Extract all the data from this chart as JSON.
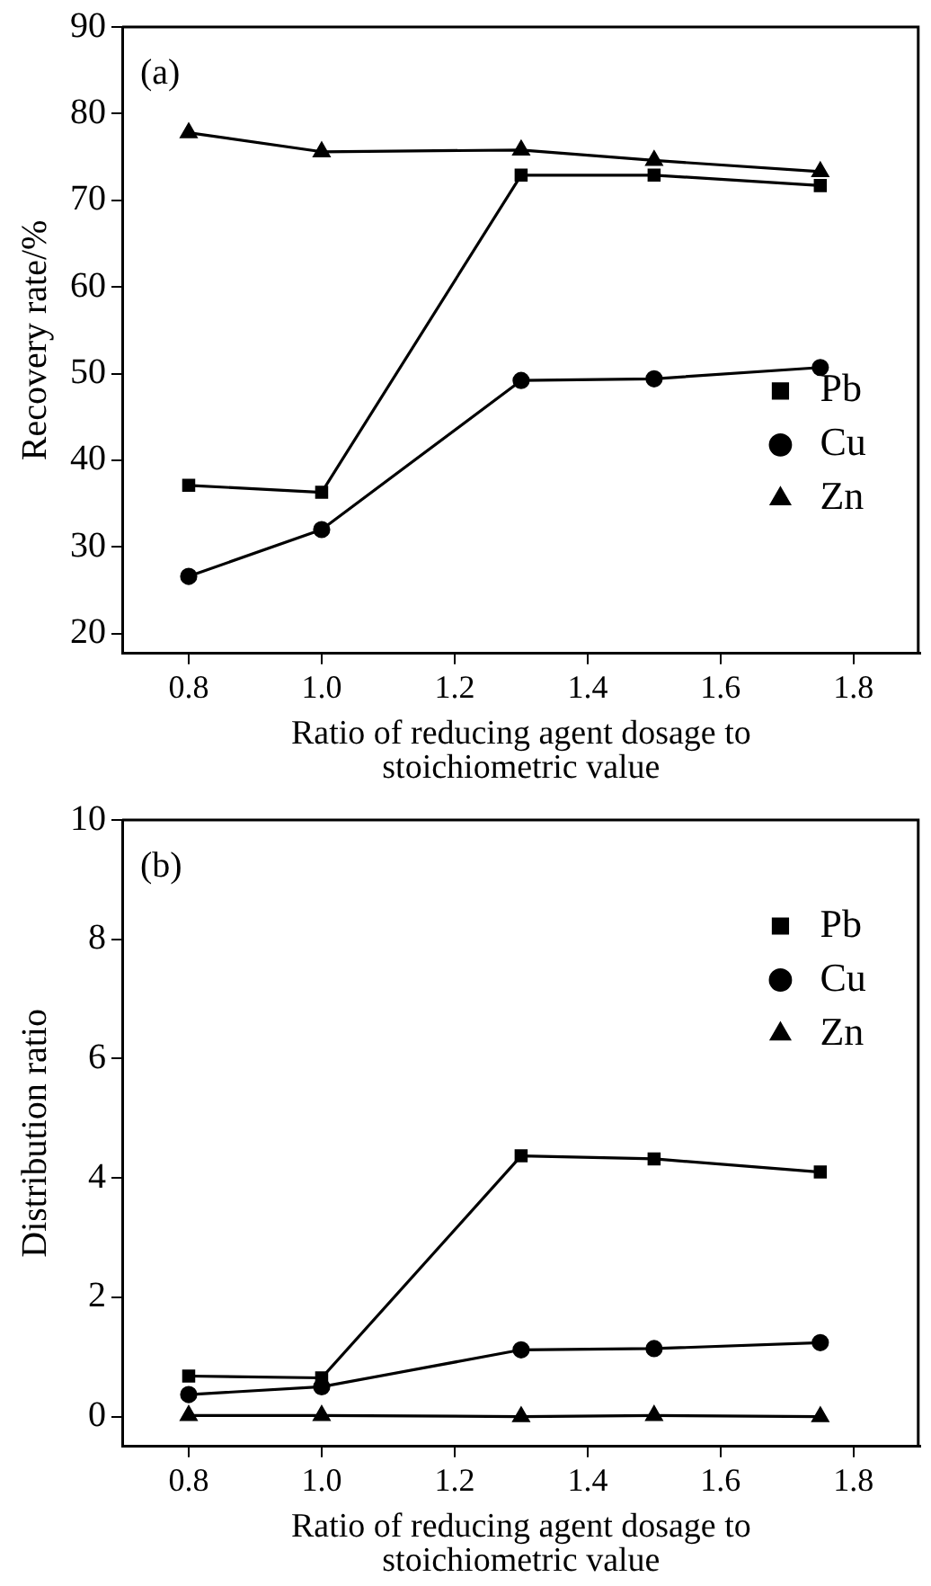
{
  "chart_data": [
    {
      "type": "line",
      "xlabel": "Ratio of reducing agent dosage to stoichiometric value",
      "ylabel": "Recovery rate/%",
      "annotations": [
        "(a)"
      ],
      "x": [
        0.8,
        1.0,
        1.3,
        1.5,
        1.75
      ],
      "series": [
        {
          "name": "Pb",
          "color": "#000000",
          "marker": "square",
          "values": [
            37.1,
            36.3,
            72.9,
            72.9,
            71.7
          ]
        },
        {
          "name": "Cu",
          "color": "#000000",
          "marker": "circle",
          "values": [
            26.6,
            32.0,
            49.2,
            49.4,
            50.7
          ]
        },
        {
          "name": "Zn",
          "color": "#000000",
          "marker": "triangle",
          "values": [
            77.8,
            75.6,
            75.8,
            74.6,
            73.3
          ]
        }
      ],
      "xlim": [
        0.7,
        1.9
      ],
      "xticks": [
        {
          "value": 0.8,
          "label": "0.8"
        },
        {
          "value": 1.0,
          "label": "1.0"
        },
        {
          "value": 1.2,
          "label": "1.2"
        },
        {
          "value": 1.4,
          "label": "1.4"
        },
        {
          "value": 1.6,
          "label": "1.6"
        },
        {
          "value": 1.8,
          "label": "1.8"
        }
      ],
      "ylim": [
        17.7,
        90
      ],
      "yticks": [
        20,
        30,
        40,
        50,
        60,
        70,
        80,
        90
      ],
      "grid": false,
      "legend": "bottom right",
      "line_style": "solid"
    },
    {
      "type": "line",
      "xlabel": "Ratio of reducing agent dosage to stoichiometric value",
      "ylabel": "Distribution ratio",
      "annotations": [
        "(b)"
      ],
      "x": [
        0.8,
        1.0,
        1.3,
        1.5,
        1.75
      ],
      "series": [
        {
          "name": "Pb",
          "color": "#000000",
          "marker": "square",
          "values": [
            0.68,
            0.65,
            4.37,
            4.32,
            4.1
          ]
        },
        {
          "name": "Cu",
          "color": "#000000",
          "marker": "circle",
          "values": [
            0.37,
            0.5,
            1.12,
            1.14,
            1.24
          ]
        },
        {
          "name": "Zn",
          "color": "#000000",
          "marker": "triangle",
          "values": [
            0.02,
            0.02,
            0.0,
            0.02,
            0.0
          ]
        }
      ],
      "xlim": [
        0.7,
        1.9
      ],
      "xticks": [
        {
          "value": 0.8,
          "label": "0.8"
        },
        {
          "value": 1.0,
          "label": "1.0"
        },
        {
          "value": 1.2,
          "label": "1.2"
        },
        {
          "value": 1.4,
          "label": "1.4"
        },
        {
          "value": 1.6,
          "label": "1.6"
        },
        {
          "value": 1.8,
          "label": "1.8"
        }
      ],
      "ylim": [
        -0.5,
        10
      ],
      "yticks": [
        0,
        2,
        4,
        6,
        8,
        10
      ],
      "grid": false,
      "legend": "top right",
      "line_style": "solid"
    }
  ]
}
